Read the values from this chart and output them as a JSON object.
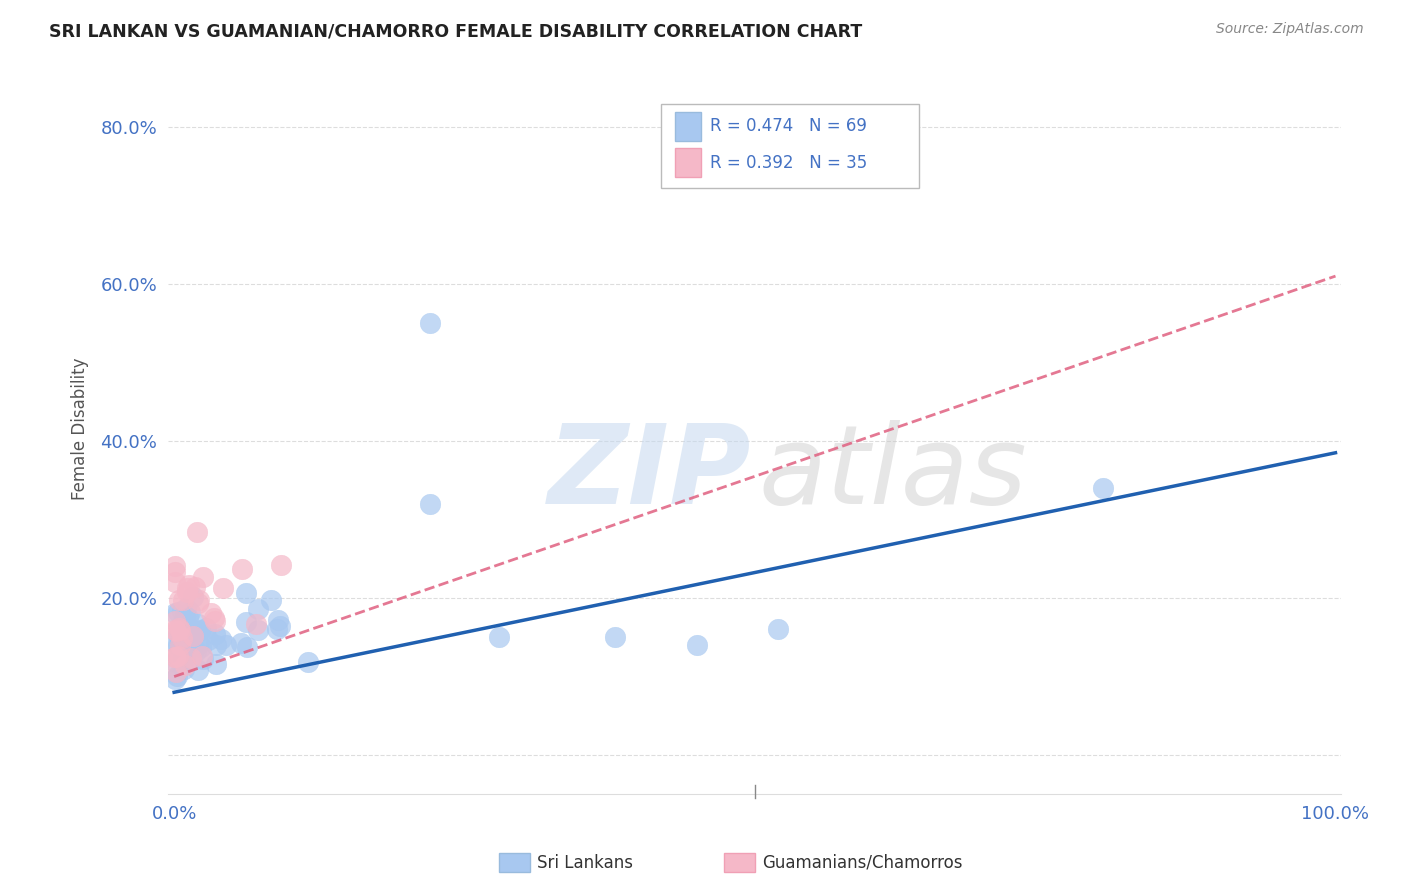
{
  "title": "SRI LANKAN VS GUAMANIAN/CHAMORRO FEMALE DISABILITY CORRELATION CHART",
  "source": "Source: ZipAtlas.com",
  "ylabel": "Female Disability",
  "xlim": [
    0,
    1.0
  ],
  "ylim": [
    -0.05,
    0.88
  ],
  "yticks": [
    0.0,
    0.2,
    0.4,
    0.6,
    0.8
  ],
  "ytick_labels": [
    "",
    "20.0%",
    "40.0%",
    "60.0%",
    "80.0%"
  ],
  "xtick_labels": [
    "0.0%",
    "",
    "100.0%"
  ],
  "sri_lankan_color": "#a8c8f0",
  "guamanian_color": "#f5b8c8",
  "sri_lankan_line_color": "#2060b0",
  "guamanian_line_color": "#e06080",
  "R_sri": 0.474,
  "N_sri": 69,
  "R_gua": 0.392,
  "N_gua": 35,
  "legend_label_sri": "Sri Lankans",
  "legend_label_gua": "Guamanians/Chamorros",
  "sri_line_x0": 0.0,
  "sri_line_y0": 0.08,
  "sri_line_x1": 1.0,
  "sri_line_y1": 0.385,
  "gua_line_x0": 0.0,
  "gua_line_y0": 0.1,
  "gua_line_x1": 1.0,
  "gua_line_y1": 0.61,
  "watermark_zip_color": "#c5d8ef",
  "watermark_atlas_color": "#c8c8c8",
  "background_color": "#ffffff",
  "grid_color": "#dddddd",
  "tick_color": "#4472c4",
  "title_color": "#222222",
  "source_color": "#888888",
  "ylabel_color": "#555555"
}
